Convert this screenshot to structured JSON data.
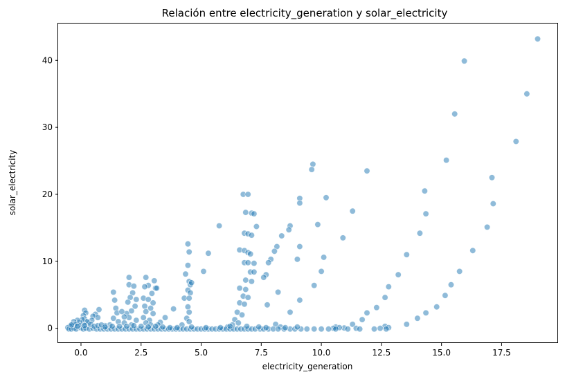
{
  "chart_data": {
    "type": "scatter",
    "title": "Relación entre electricity_generation y solar_electricity",
    "xlabel": "electricity_generation",
    "ylabel": "solar_electricity",
    "xlim": [
      -0.95,
      19.85
    ],
    "ylim": [
      -2.2,
      45.5
    ],
    "xticks": [
      0.0,
      2.5,
      5.0,
      7.5,
      10.0,
      12.5,
      15.0,
      17.5
    ],
    "xtick_labels": [
      "0.0",
      "2.5",
      "5.0",
      "7.5",
      "10.0",
      "12.5",
      "15.0",
      "17.5"
    ],
    "yticks": [
      0,
      10,
      20,
      30,
      40
    ],
    "ytick_labels": [
      "0",
      "10",
      "20",
      "30",
      "40"
    ],
    "grid": false,
    "color": "#1f77b4",
    "points": [
      [
        19.0,
        43.2
      ],
      [
        15.95,
        39.9
      ],
      [
        18.55,
        35.0
      ],
      [
        15.55,
        32.0
      ],
      [
        18.1,
        27.9
      ],
      [
        15.2,
        25.1
      ],
      [
        17.1,
        22.5
      ],
      [
        14.3,
        20.5
      ],
      [
        17.15,
        18.6
      ],
      [
        14.35,
        17.1
      ],
      [
        16.9,
        15.1
      ],
      [
        14.1,
        14.2
      ],
      [
        16.3,
        11.6
      ],
      [
        13.55,
        11.0
      ],
      [
        15.75,
        8.5
      ],
      [
        13.2,
        8.0
      ],
      [
        15.4,
        6.5
      ],
      [
        12.8,
        6.2
      ],
      [
        15.15,
        4.9
      ],
      [
        12.65,
        4.6
      ],
      [
        14.8,
        3.2
      ],
      [
        12.3,
        3.1
      ],
      [
        14.35,
        2.3
      ],
      [
        11.9,
        2.3
      ],
      [
        14.0,
        1.5
      ],
      [
        11.7,
        1.3
      ],
      [
        13.55,
        0.6
      ],
      [
        11.3,
        0.6
      ],
      [
        12.65,
        0.3
      ],
      [
        12.8,
        0.1
      ],
      [
        12.45,
        0.0
      ],
      [
        11.45,
        0.0
      ],
      [
        10.95,
        0.05
      ],
      [
        10.6,
        0.2
      ],
      [
        10.75,
        0.1
      ],
      [
        10.5,
        0.0
      ],
      [
        9.65,
        24.5
      ],
      [
        9.6,
        23.7
      ],
      [
        11.9,
        23.5
      ],
      [
        9.1,
        19.4
      ],
      [
        9.1,
        18.7
      ],
      [
        10.2,
        19.5
      ],
      [
        11.3,
        17.5
      ],
      [
        9.85,
        15.5
      ],
      [
        10.9,
        13.5
      ],
      [
        9.1,
        12.2
      ],
      [
        10.1,
        10.6
      ],
      [
        9.0,
        10.3
      ],
      [
        10.0,
        8.5
      ],
      [
        9.7,
        6.4
      ],
      [
        9.1,
        4.2
      ],
      [
        8.7,
        15.3
      ],
      [
        8.65,
        14.7
      ],
      [
        8.35,
        13.8
      ],
      [
        8.15,
        12.2
      ],
      [
        8.05,
        11.5
      ],
      [
        7.9,
        10.3
      ],
      [
        7.8,
        9.8
      ],
      [
        7.7,
        8.0
      ],
      [
        7.6,
        7.6
      ],
      [
        8.2,
        5.4
      ],
      [
        7.75,
        3.5
      ],
      [
        8.7,
        2.4
      ],
      [
        8.1,
        0.6
      ],
      [
        8.3,
        0.2
      ],
      [
        7.3,
        15.2
      ],
      [
        6.75,
        20.0
      ],
      [
        6.95,
        20.0
      ],
      [
        6.85,
        17.3
      ],
      [
        7.1,
        17.2
      ],
      [
        7.2,
        17.1
      ],
      [
        6.8,
        14.2
      ],
      [
        6.95,
        14.1
      ],
      [
        7.1,
        13.9
      ],
      [
        6.6,
        11.7
      ],
      [
        6.8,
        11.6
      ],
      [
        6.95,
        11.3
      ],
      [
        7.05,
        11.1
      ],
      [
        6.8,
        9.8
      ],
      [
        6.95,
        9.8
      ],
      [
        7.2,
        9.7
      ],
      [
        7.05,
        8.4
      ],
      [
        7.2,
        8.4
      ],
      [
        6.85,
        7.2
      ],
      [
        7.1,
        7.0
      ],
      [
        6.6,
        6.0
      ],
      [
        6.85,
        5.8
      ],
      [
        6.75,
        4.8
      ],
      [
        6.95,
        4.6
      ],
      [
        6.6,
        3.8
      ],
      [
        6.8,
        3.6
      ],
      [
        6.5,
        2.4
      ],
      [
        6.7,
        2.0
      ],
      [
        6.4,
        1.3
      ],
      [
        6.55,
        0.8
      ],
      [
        6.3,
        0.5
      ],
      [
        6.1,
        0.2
      ],
      [
        5.75,
        15.3
      ],
      [
        5.3,
        11.2
      ],
      [
        5.1,
        8.5
      ],
      [
        4.45,
        12.6
      ],
      [
        4.5,
        11.4
      ],
      [
        4.45,
        9.4
      ],
      [
        4.35,
        8.1
      ],
      [
        4.5,
        7.0
      ],
      [
        4.55,
        6.5
      ],
      [
        4.6,
        6.8
      ],
      [
        4.45,
        5.7
      ],
      [
        4.55,
        5.3
      ],
      [
        4.3,
        4.5
      ],
      [
        4.5,
        4.5
      ],
      [
        4.45,
        3.2
      ],
      [
        4.5,
        2.4
      ],
      [
        4.4,
        1.5
      ],
      [
        4.5,
        1.0
      ],
      [
        4.2,
        0.5
      ],
      [
        3.85,
        2.9
      ],
      [
        3.5,
        1.6
      ],
      [
        3.3,
        0.9
      ],
      [
        3.2,
        0.5
      ],
      [
        2.7,
        7.6
      ],
      [
        3.05,
        7.1
      ],
      [
        2.8,
        6.4
      ],
      [
        3.1,
        6.0
      ],
      [
        2.65,
        6.2
      ],
      [
        3.15,
        6.0
      ],
      [
        2.95,
        5.2
      ],
      [
        2.6,
        4.5
      ],
      [
        2.8,
        4.3
      ],
      [
        3.0,
        3.8
      ],
      [
        2.65,
        3.3
      ],
      [
        2.9,
        3.0
      ],
      [
        2.7,
        2.5
      ],
      [
        3.0,
        2.2
      ],
      [
        2.6,
        1.6
      ],
      [
        2.85,
        1.2
      ],
      [
        2.7,
        0.8
      ],
      [
        2.9,
        0.5
      ],
      [
        2.0,
        7.6
      ],
      [
        2.0,
        6.5
      ],
      [
        2.2,
        6.3
      ],
      [
        2.15,
        5.3
      ],
      [
        2.05,
        4.6
      ],
      [
        2.3,
        4.3
      ],
      [
        1.95,
        3.9
      ],
      [
        2.25,
        3.3
      ],
      [
        2.1,
        2.6
      ],
      [
        1.9,
        2.2
      ],
      [
        2.0,
        1.6
      ],
      [
        2.3,
        1.2
      ],
      [
        1.8,
        0.8
      ],
      [
        2.1,
        0.5
      ],
      [
        1.35,
        5.4
      ],
      [
        1.4,
        4.2
      ],
      [
        1.45,
        3.0
      ],
      [
        1.5,
        2.3
      ],
      [
        1.35,
        1.5
      ],
      [
        1.55,
        1.0
      ],
      [
        1.7,
        2.5
      ],
      [
        1.8,
        1.7
      ],
      [
        1.2,
        0.5
      ],
      [
        1.0,
        0.4
      ],
      [
        0.75,
        2.8
      ],
      [
        0.6,
        2.1
      ],
      [
        0.7,
        1.6
      ],
      [
        0.5,
        1.8
      ],
      [
        0.45,
        1.2
      ],
      [
        0.3,
        0.8
      ],
      [
        0.15,
        2.7
      ],
      [
        0.2,
        2.3
      ],
      [
        0.1,
        1.9
      ],
      [
        0.15,
        1.4
      ],
      [
        0.25,
        1.0
      ],
      [
        0.1,
        0.6
      ],
      [
        0.05,
        1.3
      ],
      [
        -0.05,
        0.9
      ],
      [
        -0.1,
        0.5
      ],
      [
        -0.15,
        1.2
      ],
      [
        -0.3,
        1.0
      ],
      [
        -0.35,
        0.5
      ],
      [
        -0.25,
        0.6
      ],
      [
        -0.45,
        0.3
      ],
      [
        -0.55,
        0.1
      ],
      [
        -0.5,
        -0.1
      ],
      [
        -0.4,
        -0.1
      ],
      [
        -0.3,
        0.0
      ],
      [
        -0.2,
        -0.1
      ],
      [
        0.0,
        0.05
      ],
      [
        0.1,
        -0.1
      ],
      [
        0.2,
        0.0
      ],
      [
        0.35,
        -0.1
      ],
      [
        0.5,
        0.0
      ],
      [
        0.65,
        -0.1
      ],
      [
        0.8,
        -0.1
      ],
      [
        0.95,
        -0.1
      ],
      [
        1.1,
        -0.1
      ],
      [
        1.25,
        -0.1
      ],
      [
        1.4,
        -0.1
      ],
      [
        1.55,
        -0.1
      ],
      [
        1.7,
        -0.1
      ],
      [
        1.85,
        -0.1
      ],
      [
        2.0,
        -0.1
      ],
      [
        2.15,
        -0.1
      ],
      [
        2.3,
        -0.1
      ],
      [
        2.45,
        -0.1
      ],
      [
        2.6,
        -0.1
      ],
      [
        2.75,
        -0.1
      ],
      [
        2.9,
        -0.1
      ],
      [
        3.05,
        -0.1
      ],
      [
        3.2,
        -0.1
      ],
      [
        3.35,
        -0.1
      ],
      [
        3.5,
        -0.1
      ],
      [
        3.65,
        -0.1
      ],
      [
        3.8,
        -0.1
      ],
      [
        3.95,
        -0.1
      ],
      [
        4.1,
        -0.1
      ],
      [
        4.25,
        -0.1
      ],
      [
        4.4,
        -0.1
      ],
      [
        4.55,
        -0.1
      ],
      [
        4.7,
        -0.1
      ],
      [
        4.85,
        -0.1
      ],
      [
        5.0,
        -0.1
      ],
      [
        5.15,
        -0.1
      ],
      [
        5.3,
        -0.1
      ],
      [
        5.45,
        -0.1
      ],
      [
        5.6,
        -0.1
      ],
      [
        5.75,
        -0.1
      ],
      [
        5.9,
        -0.1
      ],
      [
        6.05,
        -0.1
      ],
      [
        6.2,
        -0.1
      ],
      [
        6.35,
        -0.1
      ],
      [
        6.5,
        -0.1
      ],
      [
        6.65,
        -0.1
      ],
      [
        6.8,
        -0.1
      ],
      [
        6.95,
        -0.1
      ],
      [
        7.1,
        -0.1
      ],
      [
        7.25,
        -0.1
      ],
      [
        7.45,
        -0.1
      ],
      [
        7.6,
        -0.1
      ],
      [
        7.8,
        -0.1
      ],
      [
        8.0,
        -0.1
      ],
      [
        8.2,
        -0.1
      ],
      [
        8.45,
        -0.1
      ],
      [
        8.7,
        -0.1
      ],
      [
        8.9,
        -0.1
      ],
      [
        9.15,
        -0.1
      ],
      [
        9.4,
        -0.1
      ],
      [
        9.7,
        -0.1
      ],
      [
        10.0,
        -0.1
      ],
      [
        10.3,
        -0.1
      ],
      [
        10.6,
        -0.1
      ],
      [
        11.1,
        -0.1
      ],
      [
        11.6,
        -0.1
      ],
      [
        12.2,
        -0.1
      ],
      [
        12.7,
        -0.1
      ],
      [
        -0.4,
        0.5
      ],
      [
        -0.15,
        0.3
      ],
      [
        0.15,
        0.4
      ],
      [
        0.4,
        0.6
      ],
      [
        0.55,
        0.3
      ],
      [
        0.7,
        0.4
      ],
      [
        0.85,
        0.5
      ],
      [
        1.0,
        0.2
      ],
      [
        1.3,
        0.3
      ],
      [
        1.6,
        0.3
      ],
      [
        1.9,
        0.3
      ],
      [
        2.2,
        0.4
      ],
      [
        2.5,
        0.3
      ],
      [
        2.8,
        0.2
      ],
      [
        3.1,
        0.3
      ],
      [
        3.4,
        0.2
      ],
      [
        3.7,
        0.1
      ],
      [
        4.0,
        0.1
      ],
      [
        4.6,
        0.2
      ],
      [
        5.2,
        0.1
      ],
      [
        5.8,
        0.1
      ],
      [
        6.2,
        0.3
      ],
      [
        6.9,
        0.3
      ],
      [
        7.4,
        0.2
      ],
      [
        7.7,
        0.1
      ],
      [
        8.5,
        0.1
      ],
      [
        9.0,
        0.2
      ]
    ]
  }
}
